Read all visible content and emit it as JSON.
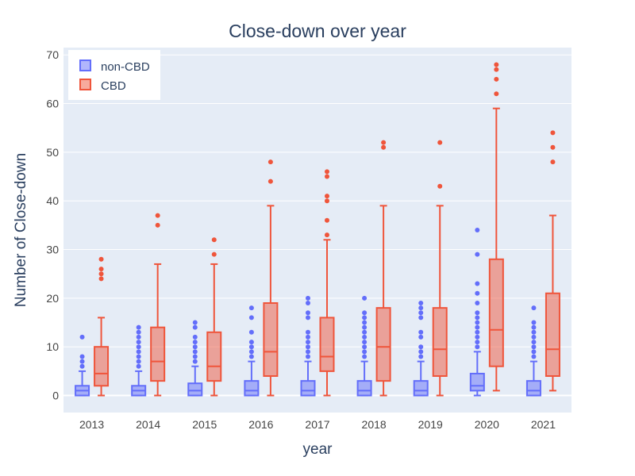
{
  "chart_data": {
    "type": "box",
    "title": "Close-down over year",
    "xlabel": "year",
    "ylabel": "Number of Close-down",
    "ylim": [
      -3.5,
      71.5
    ],
    "yticks": [
      0,
      10,
      20,
      30,
      40,
      50,
      60,
      70
    ],
    "grid": true,
    "legend_position": "top-left",
    "plot_bg": "#e5ecf6",
    "categories": [
      "2013",
      "2014",
      "2015",
      "2016",
      "2017",
      "2018",
      "2019",
      "2020",
      "2021"
    ],
    "series": [
      {
        "name": "non-CBD",
        "color": "#636efa",
        "fill": "rgba(99,110,250,0.5)",
        "boxes": [
          {
            "min": 0,
            "q1": 0,
            "median": 1,
            "q3": 2,
            "max": 5,
            "outliers": [
              6,
              7,
              8,
              12
            ]
          },
          {
            "min": 0,
            "q1": 0,
            "median": 1,
            "q3": 2,
            "max": 5,
            "outliers": [
              6,
              7,
              8,
              9,
              10,
              11,
              12,
              13,
              14
            ]
          },
          {
            "min": 0,
            "q1": 0,
            "median": 1,
            "q3": 2.5,
            "max": 6,
            "outliers": [
              7,
              8,
              9,
              10,
              11,
              12,
              14,
              15
            ]
          },
          {
            "min": 0,
            "q1": 0,
            "median": 1,
            "q3": 3,
            "max": 7,
            "outliers": [
              8,
              9,
              10,
              11,
              13,
              16,
              18
            ]
          },
          {
            "min": 0,
            "q1": 0,
            "median": 1,
            "q3": 3,
            "max": 7,
            "outliers": [
              8,
              9,
              10,
              11,
              12,
              13,
              16,
              17,
              19,
              20
            ]
          },
          {
            "min": 0,
            "q1": 0,
            "median": 1,
            "q3": 3,
            "max": 7,
            "outliers": [
              8,
              9,
              10,
              11,
              12,
              13,
              14,
              15,
              16,
              17,
              20
            ]
          },
          {
            "min": 0,
            "q1": 0,
            "median": 1,
            "q3": 3,
            "max": 7,
            "outliers": [
              8,
              9,
              10,
              12,
              13,
              16,
              17,
              18,
              19
            ]
          },
          {
            "min": 0,
            "q1": 1,
            "median": 2,
            "q3": 4.5,
            "max": 9,
            "outliers": [
              10,
              11,
              12,
              13,
              14,
              15,
              16,
              17,
              19,
              21,
              23,
              29,
              34
            ]
          },
          {
            "min": 0,
            "q1": 0,
            "median": 1,
            "q3": 3,
            "max": 7,
            "outliers": [
              8,
              9,
              10,
              11,
              12,
              13,
              14,
              15,
              18
            ]
          }
        ]
      },
      {
        "name": "CBD",
        "color": "#ef553b",
        "fill": "rgba(239,85,59,0.5)",
        "boxes": [
          {
            "min": 0,
            "q1": 2,
            "median": 4.5,
            "q3": 10,
            "max": 16,
            "outliers": [
              24,
              25,
              26,
              28
            ]
          },
          {
            "min": 0,
            "q1": 3,
            "median": 7,
            "q3": 14,
            "max": 27,
            "outliers": [
              35,
              37
            ]
          },
          {
            "min": 0,
            "q1": 3,
            "median": 6,
            "q3": 13,
            "max": 27,
            "outliers": [
              29,
              32
            ]
          },
          {
            "min": 0,
            "q1": 4,
            "median": 9,
            "q3": 19,
            "max": 39,
            "outliers": [
              44,
              48
            ]
          },
          {
            "min": 0,
            "q1": 5,
            "median": 8,
            "q3": 16,
            "max": 32,
            "outliers": [
              33,
              36,
              40,
              41,
              45,
              46
            ]
          },
          {
            "min": 0,
            "q1": 3,
            "median": 10,
            "q3": 18,
            "max": 39,
            "outliers": [
              51,
              52
            ]
          },
          {
            "min": 0,
            "q1": 4,
            "median": 9.5,
            "q3": 18,
            "max": 39,
            "outliers": [
              43,
              52
            ]
          },
          {
            "min": 1,
            "q1": 6,
            "median": 13.5,
            "q3": 28,
            "max": 59,
            "outliers": [
              62,
              65,
              67,
              68
            ]
          },
          {
            "min": 1,
            "q1": 4,
            "median": 9.5,
            "q3": 21,
            "max": 37,
            "outliers": [
              48,
              51,
              54
            ]
          }
        ]
      }
    ]
  }
}
